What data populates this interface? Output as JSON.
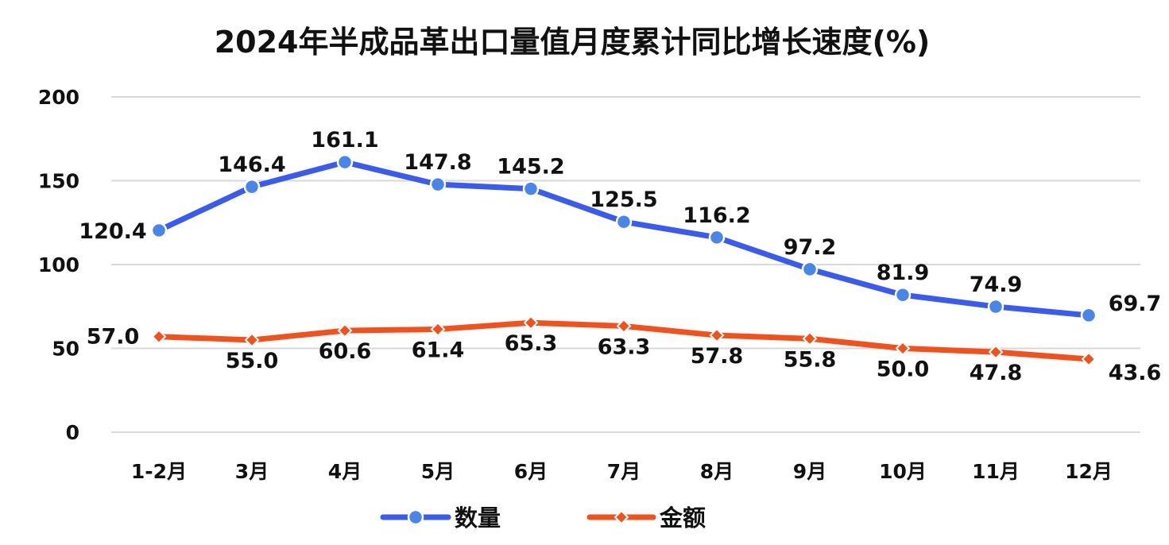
{
  "chart_data": {
    "type": "line",
    "title": "2024年半成品革出口量值月度累计同比增长速度(%)",
    "categories": [
      "1-2月",
      "3月",
      "4月",
      "5月",
      "6月",
      "7月",
      "8月",
      "9月",
      "10月",
      "11月",
      "12月"
    ],
    "ylim": [
      0,
      200
    ],
    "yticks": [
      0,
      50,
      100,
      150,
      200
    ],
    "grid": true,
    "legend_position": "bottom",
    "series": [
      {
        "name": "数量",
        "color": "#3a5bef",
        "marker_color": "#4a86e8",
        "marker": "circle",
        "values": [
          120.4,
          146.4,
          161.1,
          147.8,
          145.2,
          125.5,
          116.2,
          97.2,
          81.9,
          74.9,
          69.7
        ],
        "labels": [
          "120.4",
          "146.4",
          "161.1",
          "147.8",
          "145.2",
          "125.5",
          "116.2",
          "97.2",
          "81.9",
          "74.9",
          "69.7"
        ]
      },
      {
        "name": "金额",
        "color": "#f2511b",
        "marker_color": "#f2511b",
        "marker": "diamond",
        "values": [
          57.0,
          55.0,
          60.6,
          61.4,
          65.3,
          63.3,
          57.8,
          55.8,
          50.0,
          47.8,
          43.6
        ],
        "labels": [
          "57.0",
          "55.0",
          "60.6",
          "61.4",
          "65.3",
          "63.3",
          "57.8",
          "55.8",
          "50.0",
          "47.8",
          "43.6"
        ]
      }
    ]
  }
}
